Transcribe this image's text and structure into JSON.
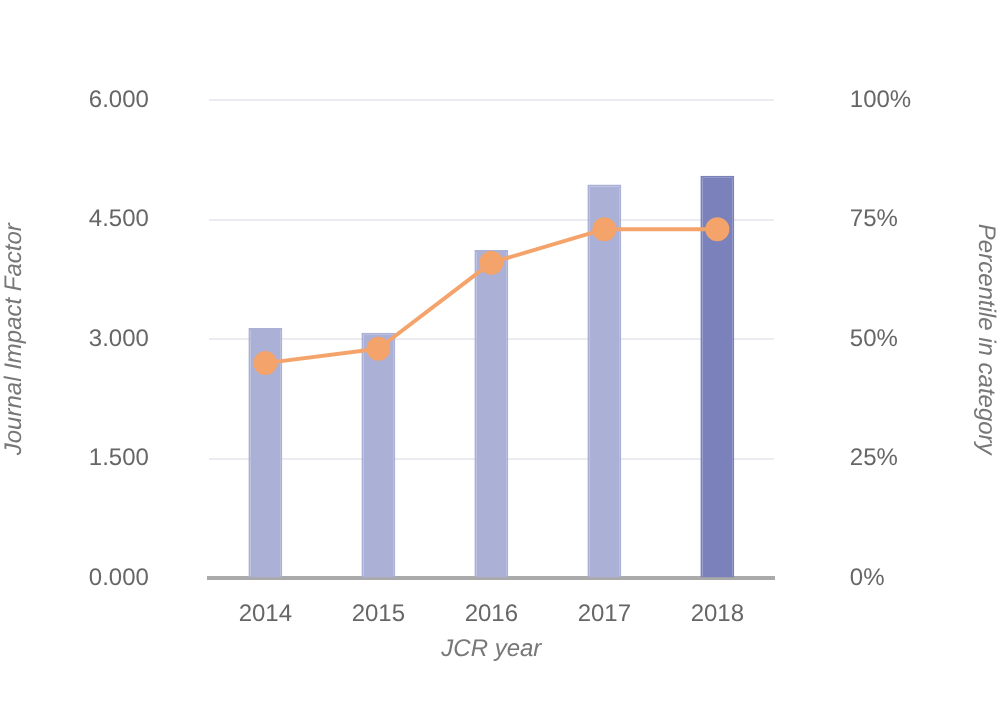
{
  "chart_data": {
    "type": "bar",
    "categories": [
      "2014",
      "2015",
      "2016",
      "2017",
      "2018"
    ],
    "xlabel": "JCR year",
    "ylabel": "Journal Impact Factor",
    "y2label": "Percentile in category",
    "series": [
      {
        "colors": [
          "#aab0d6",
          "#aab0d6",
          "#aab0d6",
          "#aab0d6",
          "#7b82bb"
        ],
        "values": [
          3.14,
          3.08,
          4.12,
          4.94,
          5.05
        ]
      },
      {
        "type": "line",
        "axis": "y2",
        "color": "#f4a36a",
        "values": [
          45,
          48,
          66,
          73,
          73
        ]
      }
    ],
    "ylim": [
      0,
      6
    ],
    "yticks": [
      {
        "value": 0,
        "label": "0.000"
      },
      {
        "value": 1.5,
        "label": "1.500"
      },
      {
        "value": 3,
        "label": "3.000"
      },
      {
        "value": 4.5,
        "label": "4.500"
      },
      {
        "value": 6,
        "label": "6.000"
      }
    ],
    "y2lim": [
      0,
      100
    ],
    "y2ticks": [
      {
        "value": 0,
        "label": "0%"
      },
      {
        "value": 25,
        "label": "25%"
      },
      {
        "value": 50,
        "label": "50%"
      },
      {
        "value": 75,
        "label": "75%"
      },
      {
        "value": 100,
        "label": "100%"
      }
    ],
    "grid": "y",
    "legend": false,
    "marker": "circle"
  }
}
